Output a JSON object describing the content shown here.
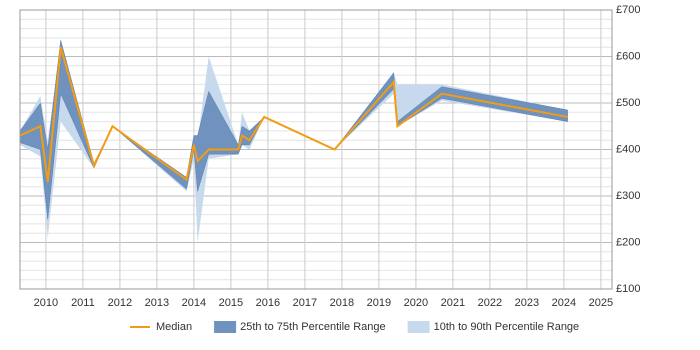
{
  "chart_data": {
    "type": "range-line",
    "x": [
      2009.3,
      2009.85,
      2010.05,
      2010.4,
      2011.3,
      2011.8,
      2013.8,
      2014.0,
      2014.1,
      2014.4,
      2015.2,
      2015.3,
      2015.5,
      2015.9,
      2017.8,
      2019.4,
      2019.5,
      2020.7,
      2024.1
    ],
    "series": [
      {
        "name": "Median",
        "color": "#f39c12",
        "values": [
          430,
          450,
          330,
          620,
          365,
          450,
          335,
          410,
          375,
          400,
          400,
          430,
          420,
          470,
          400,
          545,
          450,
          520,
          470
        ]
      },
      {
        "name": "25th to 75th Percentile Range",
        "color": "#6f92bf",
        "low": [
          415,
          400,
          250,
          520,
          360,
          450,
          315,
          400,
          310,
          390,
          390,
          410,
          410,
          470,
          400,
          530,
          450,
          510,
          460
        ],
        "high": [
          440,
          500,
          400,
          635,
          370,
          450,
          340,
          430,
          430,
          525,
          410,
          450,
          440,
          470,
          400,
          565,
          460,
          535,
          485
        ]
      },
      {
        "name": "10th to 90th Percentile Range",
        "color": "#c7d9ec",
        "low": [
          410,
          385,
          210,
          460,
          360,
          450,
          310,
          380,
          200,
          380,
          390,
          410,
          400,
          470,
          400,
          520,
          450,
          505,
          460
        ],
        "high": [
          440,
          515,
          420,
          620,
          370,
          450,
          340,
          430,
          420,
          600,
          410,
          480,
          440,
          470,
          400,
          565,
          540,
          540,
          485
        ]
      }
    ],
    "xlim": [
      2009.3,
      2025.3
    ],
    "xticks": [
      2010,
      2011,
      2012,
      2013,
      2014,
      2015,
      2016,
      2017,
      2018,
      2019,
      2020,
      2021,
      2022,
      2023,
      2024,
      2025
    ],
    "ylim": [
      100,
      700
    ],
    "yticks": [
      {
        "value": 100,
        "label": "£100"
      },
      {
        "value": 200,
        "label": "£200"
      },
      {
        "value": 300,
        "label": "£300"
      },
      {
        "value": 400,
        "label": "£400"
      },
      {
        "value": 500,
        "label": "£500"
      },
      {
        "value": 600,
        "label": "£600"
      },
      {
        "value": 700,
        "label": "£700"
      }
    ],
    "grid": true,
    "legend": "bottom"
  }
}
